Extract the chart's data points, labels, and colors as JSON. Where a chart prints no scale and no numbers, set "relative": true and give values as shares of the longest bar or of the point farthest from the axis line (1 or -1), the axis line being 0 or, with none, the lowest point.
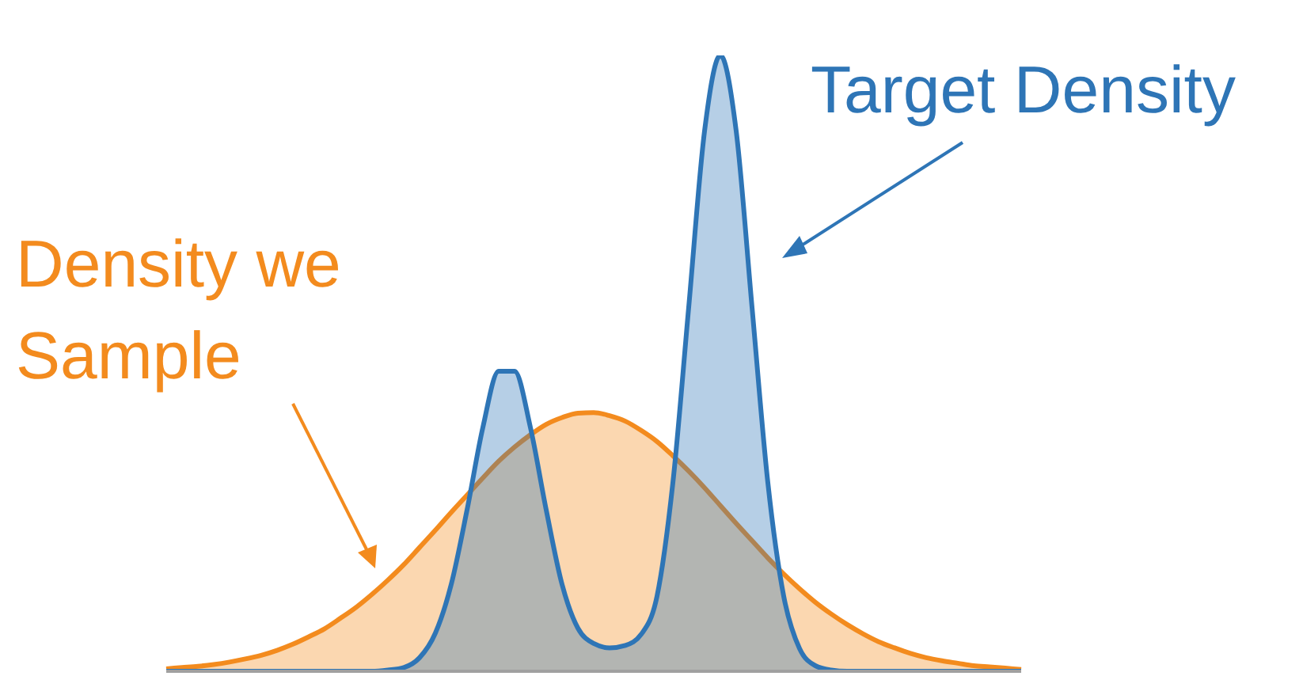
{
  "chart_data": {
    "type": "area",
    "relative": true,
    "categories": [
      null,
      null,
      null,
      null,
      null,
      null,
      null,
      null,
      null,
      null,
      null,
      null,
      null,
      null,
      null,
      null,
      null,
      null,
      null,
      null,
      null,
      null,
      null,
      null,
      null,
      null,
      null,
      null,
      null,
      null,
      null,
      null,
      null,
      null,
      null,
      null,
      null,
      null,
      null,
      null,
      null,
      null,
      null,
      null,
      null,
      null,
      null,
      null,
      null,
      null,
      null,
      null,
      null,
      null,
      null
    ],
    "series": [
      {
        "name": "Density we Sample",
        "color": "#f38b1e",
        "values": [
          0.004,
          0.006,
          0.008,
          0.011,
          0.015,
          0.02,
          0.026,
          0.034,
          0.044,
          0.056,
          0.069,
          0.086,
          0.104,
          0.125,
          0.148,
          0.173,
          0.201,
          0.229,
          0.258,
          0.286,
          0.314,
          0.341,
          0.364,
          0.384,
          0.401,
          0.412,
          0.419,
          0.42,
          0.415,
          0.406,
          0.391,
          0.373,
          0.35,
          0.325,
          0.298,
          0.269,
          0.24,
          0.212,
          0.184,
          0.158,
          0.134,
          0.112,
          0.093,
          0.076,
          0.061,
          0.048,
          0.038,
          0.029,
          0.022,
          0.017,
          0.013,
          0.009,
          0.007,
          0.005,
          0.003
        ]
      },
      {
        "name": "Target Density",
        "color": "#2e75b6",
        "values": [
          0,
          0,
          0,
          0,
          0,
          0,
          0,
          0,
          0,
          0,
          0,
          0,
          0,
          0,
          0.002,
          0.006,
          0.022,
          0.062,
          0.141,
          0.262,
          0.396,
          0.487,
          0.487,
          0.396,
          0.262,
          0.141,
          0.07,
          0.045,
          0.038,
          0.042,
          0.06,
          0.122,
          0.306,
          0.591,
          0.877,
          1,
          0.877,
          0.591,
          0.306,
          0.122,
          0.037,
          0.009,
          0.002,
          0,
          0,
          0,
          0,
          0,
          0,
          0,
          0,
          0,
          0,
          0,
          0
        ]
      }
    ]
  }
}
